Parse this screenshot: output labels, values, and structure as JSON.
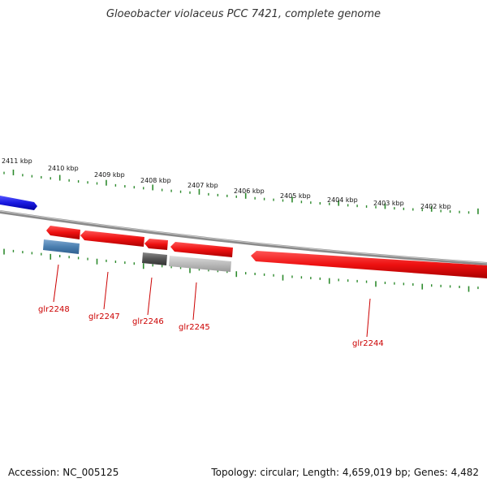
{
  "title": "Gloeobacter violaceus PCC 7421, complete genome",
  "footer": {
    "accession": "Accession: NC_005125",
    "summary": "Topology: circular; Length: 4,659,019 bp; Genes: 4,482"
  },
  "kbp_ticks": [
    "2411 kbp",
    "2410 kbp",
    "2409 kbp",
    "2408 kbp",
    "2407 kbp",
    "2406 kbp",
    "2405 kbp",
    "2404 kbp",
    "2403 kbp",
    "2402 kbp"
  ],
  "genes": [
    {
      "label": "glr2248"
    },
    {
      "label": "glr2247"
    },
    {
      "label": "glr2246"
    },
    {
      "label": "glr2245"
    },
    {
      "label": "glr2244"
    }
  ],
  "colors": {
    "backbone": "#8a8a8a",
    "tick": "#2e8b2e",
    "gene_red": "#ee1111",
    "gene_blue": "#1a1ae0",
    "gene_steel": "#4a7fb0",
    "gene_darkgray": "#555555",
    "gene_lightgray": "#b8b8b8",
    "label_red": "#cc0000"
  }
}
